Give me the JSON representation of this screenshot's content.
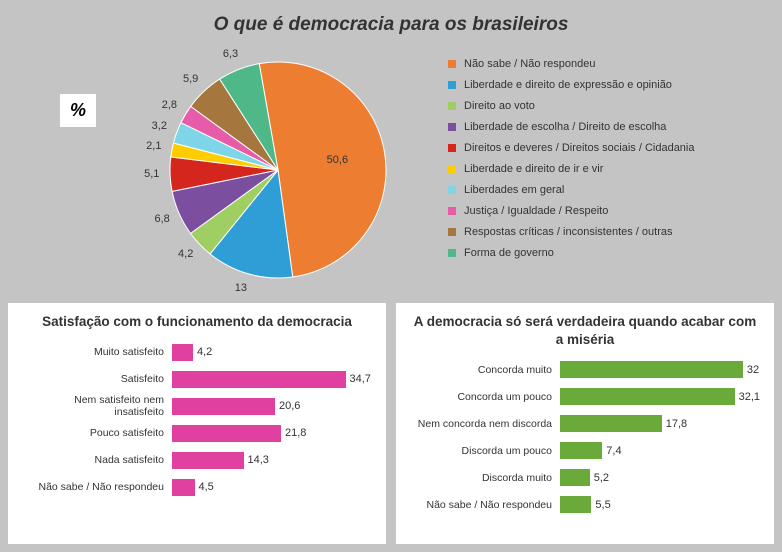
{
  "main_title": "O que é democracia para os brasileiros",
  "pct_label": "%",
  "pie": {
    "type": "pie",
    "segments": [
      {
        "label": "Não sabe / Não respondeu",
        "value": 50.6,
        "color": "#ed7d31"
      },
      {
        "label": "Liberdade e direito de expressão e opinião",
        "value": 13,
        "color": "#2f9ed6"
      },
      {
        "label": "Direito ao voto",
        "value": 4.2,
        "color": "#9fce63"
      },
      {
        "label": "Liberdade de escolha / Direito de escolha",
        "value": 6.8,
        "color": "#7c4ea0"
      },
      {
        "label": "Direitos e deveres / Direitos sociais / Cidadania",
        "value": 5.1,
        "color": "#d4261d"
      },
      {
        "label": "Liberdade e direito de ir e vir",
        "value": 2.1,
        "color": "#ffcc00"
      },
      {
        "label": "Liberdades em geral",
        "value": 3.2,
        "color": "#7fd5e8"
      },
      {
        "label": "Justiça / Igualdade / Respeito",
        "value": 2.8,
        "color": "#e75ca8"
      },
      {
        "label": "Respostas críticas / inconsistentes / outras",
        "value": 5.9,
        "color": "#a6763f"
      },
      {
        "label": "Forma de governo",
        "value": 6.3,
        "color": "#4eb888"
      }
    ],
    "start_angle_deg": -10,
    "label_fontsize": 11,
    "background_color": "#c4c4c4"
  },
  "bar_left": {
    "type": "bar-horizontal",
    "title": "Satisfação com o funcionamento da democracia",
    "color": "#e040a0",
    "xlim": [
      0,
      40
    ],
    "rows": [
      {
        "label": "Muito satisfeito",
        "value": 4.2
      },
      {
        "label": "Satisfeito",
        "value": 34.7
      },
      {
        "label": "Nem satisfeito nem insatisfeito",
        "value": 20.6
      },
      {
        "label": "Pouco satisfeito",
        "value": 21.8
      },
      {
        "label": "Nada satisfeito",
        "value": 14.3
      },
      {
        "label": "Não sabe / Não respondeu",
        "value": 4.5
      }
    ]
  },
  "bar_right": {
    "type": "bar-horizontal",
    "title": "A democracia só será verdadeira quando acabar com a miséria",
    "color": "#6aaa3a",
    "xlim": [
      0,
      35
    ],
    "rows": [
      {
        "label": "Concorda muito",
        "value": 32
      },
      {
        "label": "Concorda um pouco",
        "value": 32.1
      },
      {
        "label": "Nem concorda nem discorda",
        "value": 17.8
      },
      {
        "label": "Discorda um pouco",
        "value": 7.4
      },
      {
        "label": "Discorda muito",
        "value": 5.2
      },
      {
        "label": "Não sabe / Não respondeu",
        "value": 5.5
      }
    ]
  }
}
